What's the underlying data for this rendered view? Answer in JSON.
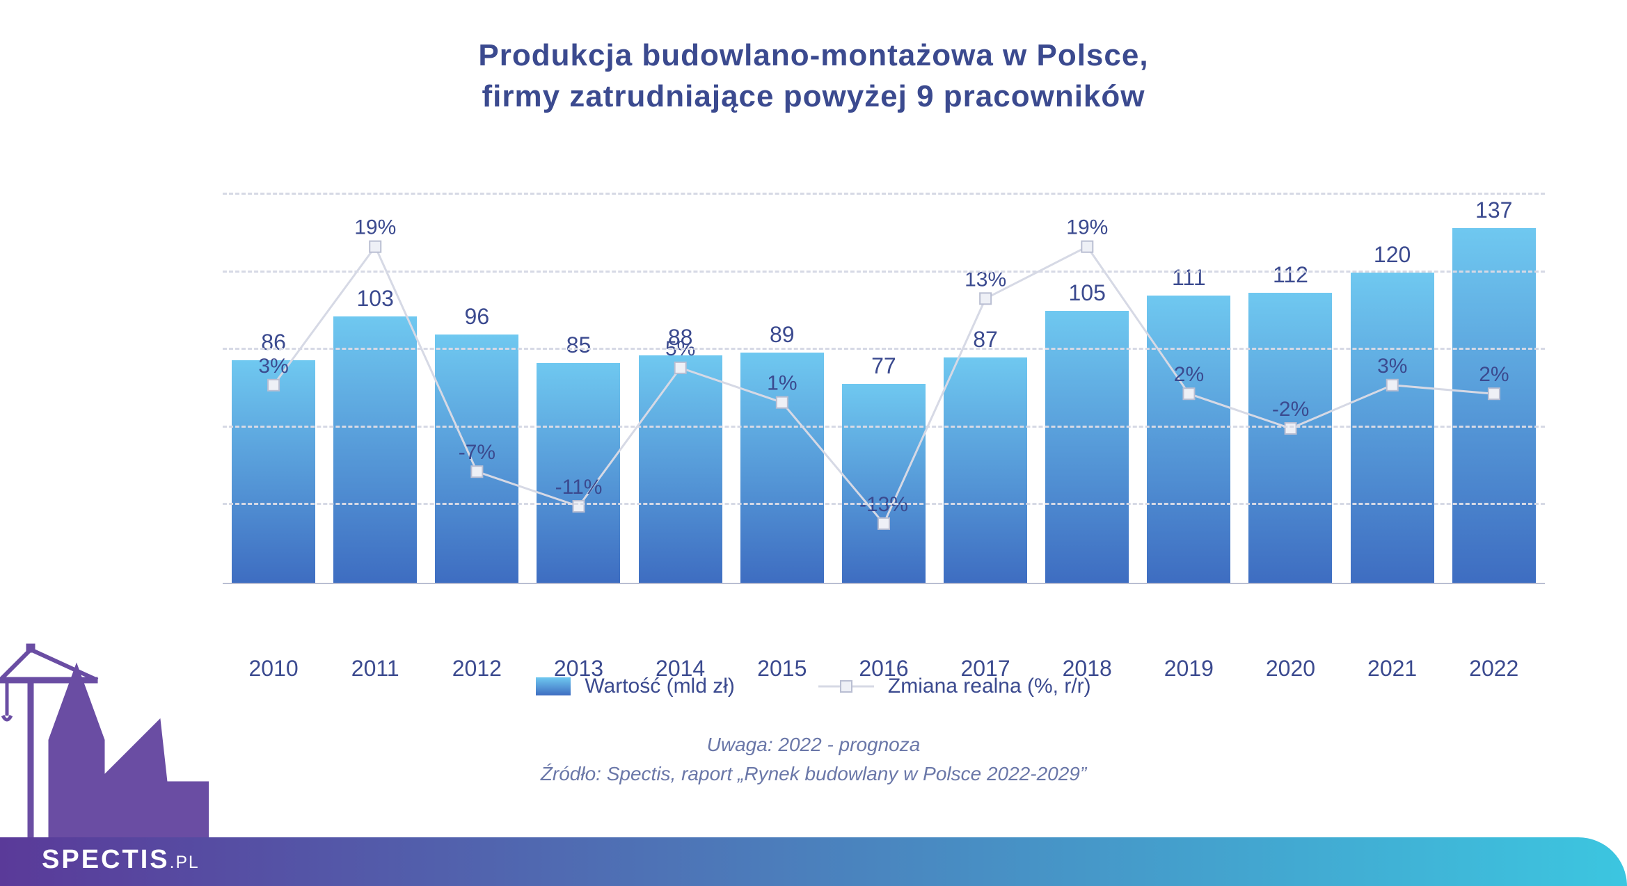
{
  "title_line1": "Produkcja budowlano-montażowa w Polsce,",
  "title_line2": "firmy zatrudniające powyżej 9 pracowników",
  "title_color": "#3b4a8f",
  "title_fontsize": 44,
  "chart": {
    "type": "bar+line",
    "categories": [
      "2010",
      "2011",
      "2012",
      "2013",
      "2014",
      "2015",
      "2016",
      "2017",
      "2018",
      "2019",
      "2020",
      "2021",
      "2022"
    ],
    "bar_values": [
      86,
      103,
      96,
      85,
      88,
      89,
      77,
      87,
      105,
      111,
      112,
      120,
      137
    ],
    "bar_value_max": 150,
    "pct_values": [
      3,
      19,
      -7,
      -11,
      5,
      1,
      -13,
      13,
      19,
      2,
      -2,
      3,
      2
    ],
    "pct_min": -20,
    "pct_max": 25,
    "bar_gradient_top": "#6fc8f0",
    "bar_gradient_bottom": "#3e6dc1",
    "bar_label_color": "#3b4a8f",
    "bar_label_fontsize": 32,
    "xtick_color": "#3b4a8f",
    "xtick_fontsize": 32,
    "grid_color": "#d6d9e5",
    "axis_color": "#b9bed2",
    "gridline_count": 5,
    "line_color": "#d6d9e5",
    "line_width": 3,
    "marker_fill": "#eef0f6",
    "marker_stroke": "#b9bed2",
    "marker_size": 16,
    "pct_label_color": "#3b4a8f",
    "pct_label_fontsize": 30,
    "background_color": "#ffffff"
  },
  "legend": {
    "bar_label": "Wartość (mld zł)",
    "line_label": "Zmiana realna (%, r/r)",
    "text_color": "#3b4a8f",
    "fontsize": 30
  },
  "footnote1": "Uwaga: 2022 - prognoza",
  "footnote2": "Źródło: Spectis, raport „Rynek budowlany w Polsce 2022-2029”",
  "footnote_color": "#6a77a8",
  "footnote_fontsize": 28,
  "bottom_bar_gradient_left": "#5a3a99",
  "bottom_bar_gradient_right": "#3cc6e0",
  "logo_text": "SPECTIS",
  "logo_pl": ".PL",
  "logo_color": "#ffffff",
  "logo_fontsize": 38,
  "silhouette_color": "#6a4da3"
}
